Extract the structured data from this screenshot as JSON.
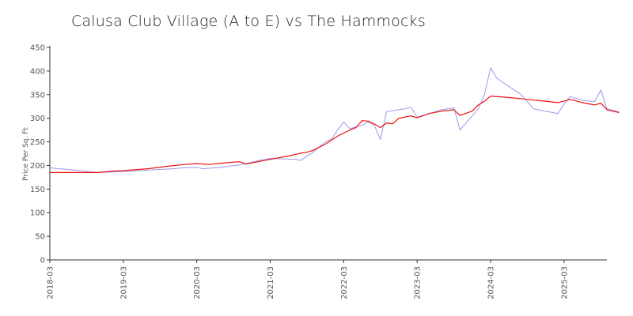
{
  "chart_data": {
    "type": "line",
    "title": "Calusa Club Village (A to E) vs The Hammocks",
    "xlabel": "",
    "ylabel": "Price Per Sq. Ft",
    "ylim": [
      0,
      450
    ],
    "yticks": [
      0,
      50,
      100,
      150,
      200,
      250,
      300,
      350,
      400,
      450
    ],
    "xlim": [
      "2018-03",
      "2025-10"
    ],
    "xticks": [
      "2018-03",
      "2019-03",
      "2020-03",
      "2021-03",
      "2022-03",
      "2023-03",
      "2024-03",
      "2025-03"
    ],
    "grid": false,
    "series": [
      {
        "color": "#9999ee",
        "points": [
          [
            "2018-03",
            195
          ],
          [
            "2018-07",
            190
          ],
          [
            "2018-11",
            185
          ],
          [
            "2019-03",
            187
          ],
          [
            "2019-07",
            190
          ],
          [
            "2019-11",
            193
          ],
          [
            "2020-01",
            195
          ],
          [
            "2020-03",
            196
          ],
          [
            "2020-04",
            193
          ],
          [
            "2020-07",
            196
          ],
          [
            "2020-10",
            201
          ],
          [
            "2021-01",
            210
          ],
          [
            "2021-03",
            215
          ],
          [
            "2021-07",
            213
          ],
          [
            "2021-08",
            211
          ],
          [
            "2021-10",
            228
          ],
          [
            "2021-12",
            250
          ],
          [
            "2022-01",
            256
          ],
          [
            "2022-02",
            275
          ],
          [
            "2022-03",
            292
          ],
          [
            "2022-04",
            278
          ],
          [
            "2022-06",
            285
          ],
          [
            "2022-07",
            292
          ],
          [
            "2022-08",
            285
          ],
          [
            "2022-09",
            255
          ],
          [
            "2022-10",
            314
          ],
          [
            "2022-11",
            316
          ],
          [
            "2023-01",
            320
          ],
          [
            "2023-02",
            323
          ],
          [
            "2023-03",
            302
          ],
          [
            "2023-05",
            310
          ],
          [
            "2023-07",
            318
          ],
          [
            "2023-09",
            322
          ],
          [
            "2023-10",
            275
          ],
          [
            "2023-11",
            290
          ],
          [
            "2024-01",
            320
          ],
          [
            "2024-02",
            350
          ],
          [
            "2024-03",
            407
          ],
          [
            "2024-04",
            385
          ],
          [
            "2024-06",
            367
          ],
          [
            "2024-08",
            350
          ],
          [
            "2024-10",
            320
          ],
          [
            "2024-12",
            315
          ],
          [
            "2025-02",
            310
          ],
          [
            "2025-03",
            330
          ],
          [
            "2025-04",
            346
          ],
          [
            "2025-06",
            338
          ],
          [
            "2025-08",
            335
          ],
          [
            "2025-09",
            360
          ],
          [
            "2025-10",
            320
          ],
          [
            "2025-12",
            313
          ]
        ]
      },
      {
        "color": "#ee1111",
        "points": [
          [
            "2018-03",
            185
          ],
          [
            "2018-07",
            185
          ],
          [
            "2018-11",
            185
          ],
          [
            "2019-01",
            188
          ],
          [
            "2019-03",
            189
          ],
          [
            "2019-07",
            193
          ],
          [
            "2019-10",
            198
          ],
          [
            "2020-01",
            202
          ],
          [
            "2020-03",
            204
          ],
          [
            "2020-05",
            202
          ],
          [
            "2020-08",
            206
          ],
          [
            "2020-10",
            208
          ],
          [
            "2020-11",
            203
          ],
          [
            "2021-03",
            213
          ],
          [
            "2021-06",
            220
          ],
          [
            "2021-08",
            226
          ],
          [
            "2021-09",
            228
          ],
          [
            "2021-10",
            232
          ],
          [
            "2021-12",
            245
          ],
          [
            "2022-02",
            262
          ],
          [
            "2022-04",
            275
          ],
          [
            "2022-05",
            280
          ],
          [
            "2022-06",
            295
          ],
          [
            "2022-07",
            294
          ],
          [
            "2022-08",
            288
          ],
          [
            "2022-09",
            280
          ],
          [
            "2022-10",
            290
          ],
          [
            "2022-11",
            288
          ],
          [
            "2022-12",
            300
          ],
          [
            "2023-02",
            305
          ],
          [
            "2023-03",
            301
          ],
          [
            "2023-05",
            310
          ],
          [
            "2023-07",
            315
          ],
          [
            "2023-09",
            318
          ],
          [
            "2023-10",
            306
          ],
          [
            "2023-12",
            315
          ],
          [
            "2024-01",
            328
          ],
          [
            "2024-02",
            336
          ],
          [
            "2024-03",
            347
          ],
          [
            "2024-06",
            344
          ],
          [
            "2024-09",
            340
          ],
          [
            "2024-12",
            336
          ],
          [
            "2025-02",
            333
          ],
          [
            "2025-04",
            340
          ],
          [
            "2025-06",
            333
          ],
          [
            "2025-08",
            328
          ],
          [
            "2025-09",
            332
          ],
          [
            "2025-10",
            318
          ],
          [
            "2025-12",
            312
          ]
        ]
      }
    ]
  }
}
